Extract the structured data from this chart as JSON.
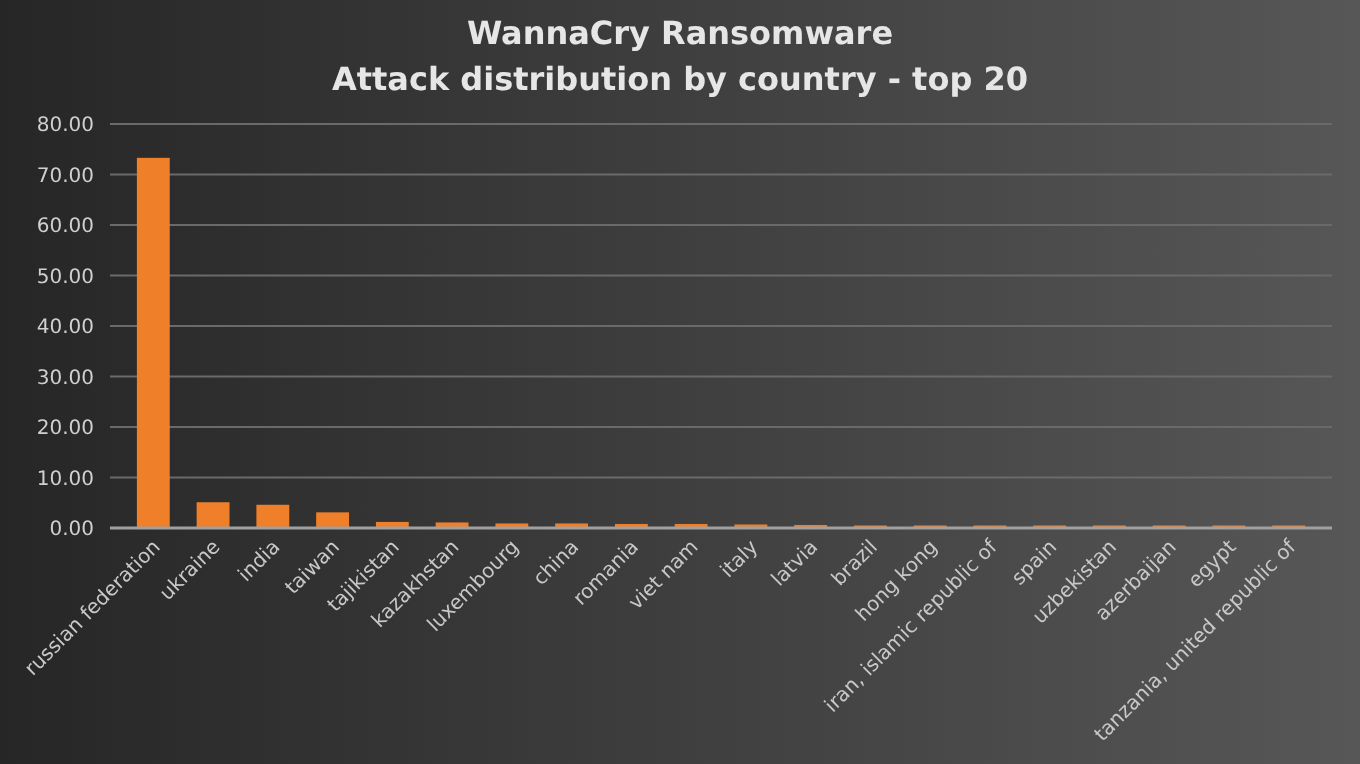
{
  "chart_data": {
    "type": "bar",
    "title": "WannaCry  Ransomware",
    "subtitle": "Attack distribution  by country  - top 20",
    "categories": [
      "russian federation",
      "ukraine",
      "india",
      "taiwan",
      "tajikistan",
      "kazakhstan",
      "luxembourg",
      "china",
      "romania",
      "viet nam",
      "italy",
      "latvia",
      "brazil",
      "hong kong",
      "iran, islamic republic of",
      "spain",
      "uzbekistan",
      "azerbaijan",
      "egypt",
      "tanzania, united republic of"
    ],
    "values": [
      73.3,
      5.1,
      4.6,
      3.1,
      1.2,
      1.1,
      0.9,
      0.9,
      0.8,
      0.8,
      0.7,
      0.6,
      0.5,
      0.5,
      0.5,
      0.5,
      0.5,
      0.5,
      0.5,
      0.5
    ],
    "color": "#f07f2a",
    "ylim": [
      0,
      80
    ],
    "yticks": [
      {
        "value": 0,
        "label": "0.00"
      },
      {
        "value": 10,
        "label": "10.00"
      },
      {
        "value": 20,
        "label": "20.00"
      },
      {
        "value": 30,
        "label": "30.00"
      },
      {
        "value": 40,
        "label": "40.00"
      },
      {
        "value": 50,
        "label": "50.00"
      },
      {
        "value": 60,
        "label": "60.00"
      },
      {
        "value": 70,
        "label": "70.00"
      },
      {
        "value": 80,
        "label": "80.00"
      }
    ],
    "grid": "y"
  }
}
